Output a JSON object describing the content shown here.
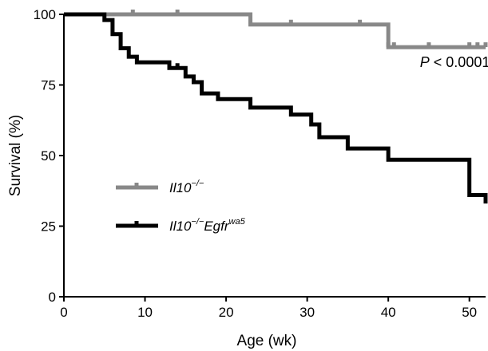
{
  "chart_data": {
    "type": "line",
    "subtype": "kaplan-meier survival",
    "xlabel": "Age (wk)",
    "ylabel": "Survival (%)",
    "xlim": [
      0,
      52
    ],
    "ylim": [
      0,
      100
    ],
    "x_ticks": [
      "0",
      "10",
      "20",
      "30",
      "40",
      "50"
    ],
    "y_ticks": [
      "0",
      "25",
      "50",
      "75",
      "100"
    ],
    "grid": false,
    "legend_position": "center-left",
    "annotation": {
      "italic": "P",
      "text": " < 0.0001",
      "x": 44,
      "y": 83
    },
    "series": [
      {
        "legend_base": "Il10",
        "legend_sup": "−/−",
        "legend_suffix": "",
        "legend_suffix_sup": "",
        "color": "#888888",
        "steps": [
          [
            0,
            100
          ],
          [
            23,
            96.4
          ],
          [
            40,
            88.4
          ],
          [
            52,
            88.4
          ]
        ],
        "censored": [
          [
            8.5,
            100
          ],
          [
            14,
            100
          ],
          [
            23,
            96.4
          ],
          [
            28,
            96.4
          ],
          [
            36.5,
            96.4
          ],
          [
            40,
            88.4
          ],
          [
            40.7,
            88.4
          ],
          [
            45,
            88.4
          ],
          [
            50,
            88.4
          ],
          [
            51,
            88.4
          ],
          [
            52,
            88.4
          ]
        ]
      },
      {
        "legend_base": "Il10",
        "legend_sup": "−/−",
        "legend_suffix": "Egfr",
        "legend_suffix_sup": "wa5",
        "color": "#000000",
        "steps": [
          [
            0,
            100
          ],
          [
            5,
            98
          ],
          [
            6,
            93
          ],
          [
            7,
            88
          ],
          [
            8,
            85
          ],
          [
            9,
            83
          ],
          [
            13,
            81
          ],
          [
            15,
            78
          ],
          [
            16,
            76
          ],
          [
            17,
            72
          ],
          [
            19,
            70
          ],
          [
            23,
            67
          ],
          [
            28,
            64.5
          ],
          [
            30.5,
            61
          ],
          [
            31.5,
            56.5
          ],
          [
            35,
            52.5
          ],
          [
            40,
            48.5
          ],
          [
            50,
            36
          ],
          [
            52,
            33
          ]
        ],
        "censored": [
          [
            14,
            81
          ]
        ]
      }
    ]
  }
}
